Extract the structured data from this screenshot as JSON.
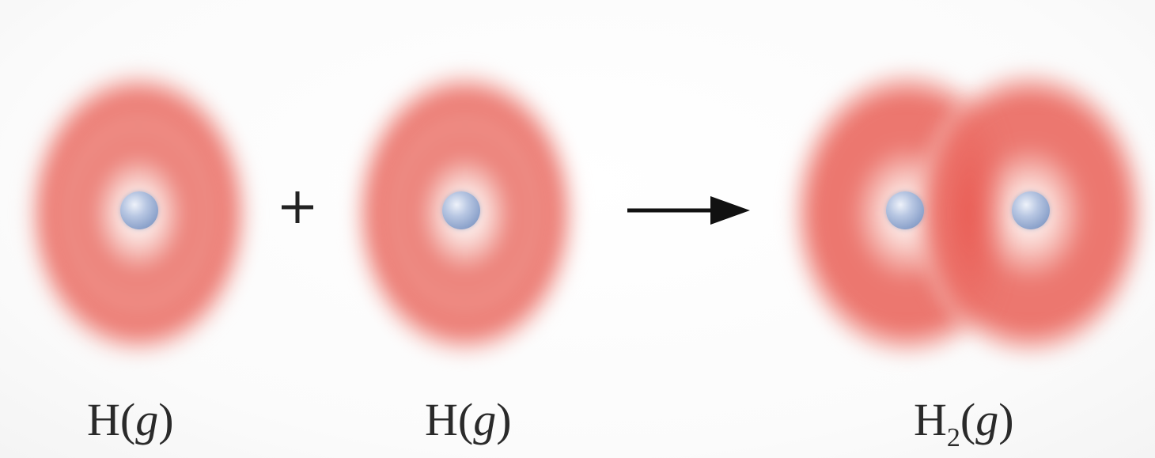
{
  "reactants": [
    {
      "element": "H",
      "open": "(",
      "phase": "g",
      "close": ")"
    },
    {
      "element": "H",
      "open": "(",
      "phase": "g",
      "close": ")"
    }
  ],
  "plus_symbol": "+",
  "arrow_icon": "right-arrow-icon",
  "product": {
    "element": "H",
    "subscript": "2",
    "open": "(",
    "phase": "g",
    "close": ")"
  },
  "colors": {
    "electron_cloud": "#ec7c74",
    "nucleus": "#9fb3d8",
    "text": "#2a2a2a",
    "background": "#fdfdfd"
  }
}
